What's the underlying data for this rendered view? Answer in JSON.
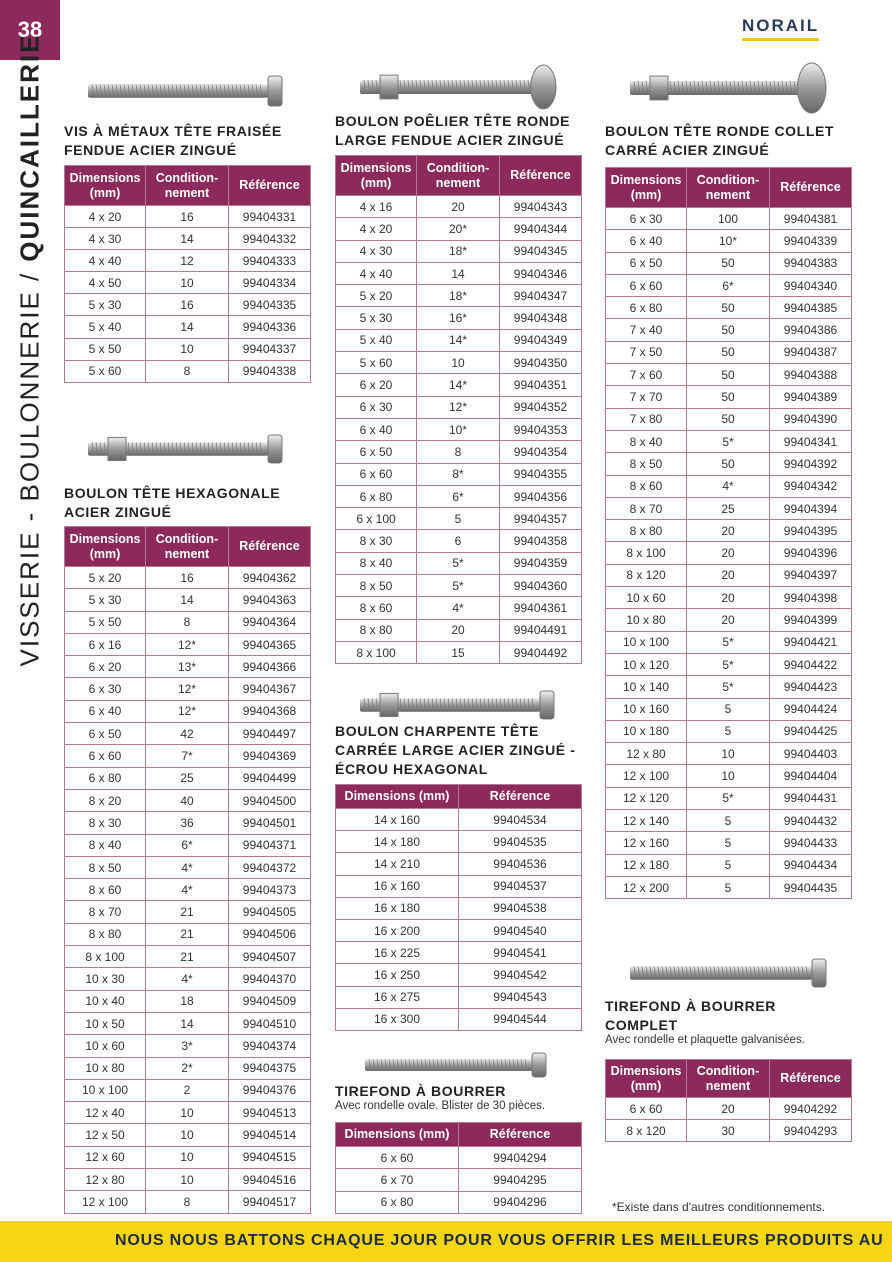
{
  "page_number": "38",
  "side_title": {
    "light": "VISSERIE - BOULONNERIE /",
    "bold": "QUINCAILLERIE"
  },
  "logo": "NORAIL",
  "products": [
    {
      "title": [
        "VIS À MÉTAUX TÊTE FRAISÉE",
        "FENDUE ACIER ZINGUÉ"
      ],
      "headers": [
        "Dimensions\n(mm)",
        "Condition-\nnement",
        "Référence"
      ],
      "rows": [
        [
          "4 x 20",
          "16",
          "99404331"
        ],
        [
          "4 x 30",
          "14",
          "99404332"
        ],
        [
          "4 x 40",
          "12",
          "99404333"
        ],
        [
          "4 x 50",
          "10",
          "99404334"
        ],
        [
          "5 x 30",
          "16",
          "99404335"
        ],
        [
          "5 x 40",
          "14",
          "99404336"
        ],
        [
          "5 x 50",
          "10",
          "99404337"
        ],
        [
          "5 x 60",
          "8",
          "99404338"
        ]
      ]
    },
    {
      "title": [
        "BOULON TÊTE HEXAGONALE",
        "ACIER ZINGUÉ"
      ],
      "headers": [
        "Dimensions\n(mm)",
        "Condition-\nnement",
        "Référence"
      ],
      "rows": [
        [
          "5 x 20",
          "16",
          "99404362"
        ],
        [
          "5 x 30",
          "14",
          "99404363"
        ],
        [
          "5 x 50",
          "8",
          "99404364"
        ],
        [
          "6 x 16",
          "12*",
          "99404365"
        ],
        [
          "6 x 20",
          "13*",
          "99404366"
        ],
        [
          "6 x 30",
          "12*",
          "99404367"
        ],
        [
          "6 x 40",
          "12*",
          "99404368"
        ],
        [
          "6 x 50",
          "42",
          "99404497"
        ],
        [
          "6 x 60",
          "7*",
          "99404369"
        ],
        [
          "6 x 80",
          "25",
          "99404499"
        ],
        [
          "8 x 20",
          "40",
          "99404500"
        ],
        [
          "8 x 30",
          "36",
          "99404501"
        ],
        [
          "8 x 40",
          "6*",
          "99404371"
        ],
        [
          "8 x 50",
          "4*",
          "99404372"
        ],
        [
          "8 x 60",
          "4*",
          "99404373"
        ],
        [
          "8 x 70",
          "21",
          "99404505"
        ],
        [
          "8 x 80",
          "21",
          "99404506"
        ],
        [
          "8 x 100",
          "21",
          "99404507"
        ],
        [
          "10 x 30",
          "4*",
          "99404370"
        ],
        [
          "10 x 40",
          "18",
          "99404509"
        ],
        [
          "10 x 50",
          "14",
          "99404510"
        ],
        [
          "10 x 60",
          "3*",
          "99404374"
        ],
        [
          "10 x 80",
          "2*",
          "99404375"
        ],
        [
          "10 x 100",
          "2",
          "99404376"
        ],
        [
          "12 x 40",
          "10",
          "99404513"
        ],
        [
          "12 x 50",
          "10",
          "99404514"
        ],
        [
          "12 x 60",
          "10",
          "99404515"
        ],
        [
          "12 x 80",
          "10",
          "99404516"
        ],
        [
          "12 x 100",
          "8",
          "99404517"
        ]
      ]
    },
    {
      "title": [
        "BOULON POÊLIER TÊTE RONDE",
        "LARGE FENDUE ACIER ZINGUÉ"
      ],
      "headers": [
        "Dimensions\n(mm)",
        "Condition-\nnement",
        "Référence"
      ],
      "rows": [
        [
          "4 x 16",
          "20",
          "99404343"
        ],
        [
          "4 x 20",
          "20*",
          "99404344"
        ],
        [
          "4 x 30",
          "18*",
          "99404345"
        ],
        [
          "4 x 40",
          "14",
          "99404346"
        ],
        [
          "5 x 20",
          "18*",
          "99404347"
        ],
        [
          "5 x 30",
          "16*",
          "99404348"
        ],
        [
          "5 x 40",
          "14*",
          "99404349"
        ],
        [
          "5 x 60",
          "10",
          "99404350"
        ],
        [
          "6 x 20",
          "14*",
          "99404351"
        ],
        [
          "6 x 30",
          "12*",
          "99404352"
        ],
        [
          "6 x 40",
          "10*",
          "99404353"
        ],
        [
          "6 x 50",
          "8",
          "99404354"
        ],
        [
          "6 x 60",
          "8*",
          "99404355"
        ],
        [
          "6 x 80",
          "6*",
          "99404356"
        ],
        [
          "6 x 100",
          "5",
          "99404357"
        ],
        [
          "8 x 30",
          "6",
          "99404358"
        ],
        [
          "8 x 40",
          "5*",
          "99404359"
        ],
        [
          "8 x 50",
          "5*",
          "99404360"
        ],
        [
          "8 x 60",
          "4*",
          "99404361"
        ],
        [
          "8 x 80",
          "20",
          "99404491"
        ],
        [
          "8 x 100",
          "15",
          "99404492"
        ]
      ]
    },
    {
      "title": [
        "BOULON CHARPENTE TÊTE",
        "CARRÉE LARGE ACIER ZINGUÉ -",
        "ÉCROU HEXAGONAL"
      ],
      "headers": [
        "Dimensions (mm)",
        "Référence"
      ],
      "rows": [
        [
          "14 x 160",
          "99404534"
        ],
        [
          "14 x 180",
          "99404535"
        ],
        [
          "14 x 210",
          "99404536"
        ],
        [
          "16 x 160",
          "99404537"
        ],
        [
          "16 x 180",
          "99404538"
        ],
        [
          "16 x 200",
          "99404540"
        ],
        [
          "16 x 225",
          "99404541"
        ],
        [
          "16 x 250",
          "99404542"
        ],
        [
          "16 x 275",
          "99404543"
        ],
        [
          "16 x 300",
          "99404544"
        ]
      ]
    },
    {
      "title": [
        "TIREFOND À BOURRER"
      ],
      "subtitle": "Avec rondelle ovale. Blister de 30 pièces.",
      "headers": [
        "Dimensions (mm)",
        "Référence"
      ],
      "rows": [
        [
          "6 x 60",
          "99404294"
        ],
        [
          "6 x 70",
          "99404295"
        ],
        [
          "6 x 80",
          "99404296"
        ]
      ]
    },
    {
      "title": [
        "BOULON TÊTE RONDE COLLET",
        "CARRÉ ACIER ZINGUÉ"
      ],
      "headers": [
        "Dimensions\n(mm)",
        "Condition-\nnement",
        "Référence"
      ],
      "rows": [
        [
          "6 x 30",
          "100",
          "99404381"
        ],
        [
          "6 x 40",
          "10*",
          "99404339"
        ],
        [
          "6 x 50",
          "50",
          "99404383"
        ],
        [
          "6 x 60",
          "6*",
          "99404340"
        ],
        [
          "6 x 80",
          "50",
          "99404385"
        ],
        [
          "7 x 40",
          "50",
          "99404386"
        ],
        [
          "7 x 50",
          "50",
          "99404387"
        ],
        [
          "7 x 60",
          "50",
          "99404388"
        ],
        [
          "7 x 70",
          "50",
          "99404389"
        ],
        [
          "7 x 80",
          "50",
          "99404390"
        ],
        [
          "8 x 40",
          "5*",
          "99404341"
        ],
        [
          "8 x 50",
          "50",
          "99404392"
        ],
        [
          "8 x 60",
          "4*",
          "99404342"
        ],
        [
          "8 x 70",
          "25",
          "99404394"
        ],
        [
          "8 x 80",
          "20",
          "99404395"
        ],
        [
          "8 x 100",
          "20",
          "99404396"
        ],
        [
          "8 x 120",
          "20",
          "99404397"
        ],
        [
          "10 x 60",
          "20",
          "99404398"
        ],
        [
          "10 x 80",
          "20",
          "99404399"
        ],
        [
          "10 x 100",
          "5*",
          "99404421"
        ],
        [
          "10 x 120",
          "5*",
          "99404422"
        ],
        [
          "10 x 140",
          "5*",
          "99404423"
        ],
        [
          "10 x 160",
          "5",
          "99404424"
        ],
        [
          "10 x 180",
          "5",
          "99404425"
        ],
        [
          "12 x 80",
          "10",
          "99404403"
        ],
        [
          "12 x 100",
          "10",
          "99404404"
        ],
        [
          "12 x 120",
          "5*",
          "99404431"
        ],
        [
          "12 x 140",
          "5",
          "99404432"
        ],
        [
          "12 x 160",
          "5",
          "99404433"
        ],
        [
          "12 x 180",
          "5",
          "99404434"
        ],
        [
          "12 x 200",
          "5",
          "99404435"
        ]
      ]
    },
    {
      "title": [
        "TIREFOND À BOURRER",
        "COMPLET"
      ],
      "subtitle": "Avec rondelle et plaquette galvanisées.",
      "headers": [
        "Dimensions\n(mm)",
        "Condition-\nnement",
        "Référence"
      ],
      "rows": [
        [
          "6 x 60",
          "20",
          "99404292"
        ],
        [
          "8 x 120",
          "30",
          "99404293"
        ]
      ]
    }
  ],
  "footnote": "*Existe dans d'autres conditionnements.",
  "banner": "NOUS NOUS BATTONS CHAQUE JOUR POUR VOUS OFFRIR LES MEILLEURS PRODUITS AU"
}
